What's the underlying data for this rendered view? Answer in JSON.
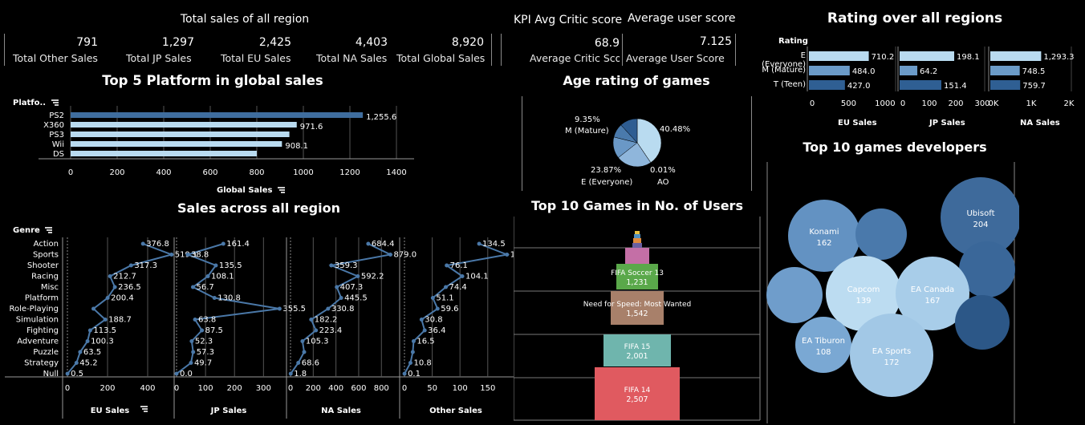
{
  "kpi_sales": {
    "title": "Total sales of all region",
    "items": [
      {
        "value": "791",
        "label": "Total Other Sales"
      },
      {
        "value": "1,297",
        "label": "Total JP Sales"
      },
      {
        "value": "2,425",
        "label": "Total EU Sales"
      },
      {
        "value": "4,403",
        "label": "Total NA Sales"
      },
      {
        "value": "8,920",
        "label": "Total Global Sales"
      }
    ]
  },
  "kpi_scores": {
    "critic_title": "KPI Avg Critic score",
    "critic_value": "68.9",
    "critic_label": "Average Critic Sco",
    "user_title": "Average user score",
    "user_value": "7.125",
    "user_label": "Average User Score"
  },
  "rating_panel": {
    "title": "Rating over all regions",
    "header": "Rating",
    "categories": [
      "E (Everyone)",
      "M (Mature)",
      "T (Teen)"
    ],
    "axis_titles": [
      "EU Sales",
      "JP Sales",
      "NA Sales"
    ],
    "axis_ticks": [
      [
        "0",
        "500",
        "1000"
      ],
      [
        "0",
        "100",
        "200",
        "300"
      ],
      [
        "0K",
        "1K",
        "2K"
      ]
    ],
    "colors": [
      "#b9dbf0",
      "#6b9bc8",
      "#2f5f93"
    ]
  },
  "platform_panel": {
    "title": "Top 5 Platform in global sales",
    "header": "Platfo..",
    "axis_title": "Global Sales",
    "color": "#b9dbf0",
    "top_color": "#3f6d9e"
  },
  "age_panel": {
    "title": "Age rating of games",
    "labels": [
      {
        "pct": "9.35%",
        "name": "M (Mature)"
      },
      {
        "pct": "40.48%",
        "name": ""
      },
      {
        "pct": "23.87%",
        "name": "E (Everyone)"
      },
      {
        "pct": "0.01%",
        "name": "AO"
      }
    ]
  },
  "genre_panel": {
    "title": "Sales across all region",
    "header": "Genre",
    "axis_titles": [
      "EU Sales",
      "JP Sales",
      "NA Sales",
      "Other Sales"
    ],
    "line_color": "#4a78a8"
  },
  "funnel_panel": {
    "title": "Top 10 Games in No. of Users",
    "items": [
      {
        "name": "FIFA 14",
        "value": "2,507",
        "color": "#e05a60"
      },
      {
        "name": "FIFA 15",
        "value": "2,001",
        "color": "#6fb5ad"
      },
      {
        "name": "Need for Speed: Most Wanted",
        "value": "1,542",
        "color": "#a8806a"
      },
      {
        "name": "FIFA Soccer 13",
        "value": "1,231",
        "color": "#5aa84a"
      }
    ],
    "small_colors": [
      "#c46fa6",
      "#6a5fa0",
      "#e08a3c",
      "#4f8fc0",
      "#e8c040"
    ]
  },
  "bubble_panel": {
    "title": "Top 10 games developers",
    "bubbles": [
      {
        "name": "Ubisoft",
        "value": "204",
        "color": "#3e6a9b"
      },
      {
        "name": "Konami",
        "value": "162",
        "color": "#6392c2"
      },
      {
        "name": "",
        "value": "",
        "color": "#4a79ab"
      },
      {
        "name": "",
        "value": "",
        "color": "#3a6799"
      },
      {
        "name": "",
        "value": "",
        "color": "#6f9dcb"
      },
      {
        "name": "Capcom",
        "value": "139",
        "color": "#bcdcf1"
      },
      {
        "name": "EA Canada",
        "value": "167",
        "color": "#a8cde9"
      },
      {
        "name": "",
        "value": "",
        "color": "#2c5787"
      },
      {
        "name": "EA Tiburon",
        "value": "108",
        "color": "#7aa8d3"
      },
      {
        "name": "EA Sports",
        "value": "172",
        "color": "#a2c8e6"
      }
    ]
  },
  "chart_data": [
    {
      "type": "bar",
      "title": "Top 5 Platform in global sales",
      "xlabel": "Global Sales",
      "ylabel": "Platfo..",
      "categories": [
        "PS2",
        "X360",
        "PS3",
        "Wii",
        "DS"
      ],
      "values": [
        1255.6,
        971.6,
        940,
        908.1,
        800
      ],
      "labels": [
        "1,255.6",
        "971.6",
        "",
        "908.1",
        ""
      ],
      "xlim": [
        0,
        1400
      ],
      "ticks": [
        0,
        200,
        400,
        600,
        800,
        1000,
        1200,
        1400
      ]
    },
    {
      "type": "bar",
      "title": "Rating over all regions",
      "categories": [
        "E (Everyone)",
        "M (Mature)",
        "T (Teen)"
      ],
      "series": [
        {
          "name": "EU Sales",
          "values": [
            710.2,
            484.0,
            427.0
          ],
          "labels": [
            "710.2",
            "484.0",
            "427.0"
          ],
          "max": 1000
        },
        {
          "name": "JP Sales",
          "values": [
            198.1,
            64.2,
            151.4
          ],
          "labels": [
            "198.1",
            "64.2",
            "151.4"
          ],
          "max": 300
        },
        {
          "name": "NA Sales",
          "values": [
            1293.3,
            748.5,
            759.7
          ],
          "labels": [
            "1,293.3",
            "748.5",
            "759.7"
          ],
          "max": 2000
        }
      ]
    },
    {
      "type": "pie",
      "title": "Age rating of games",
      "slices": [
        {
          "label": "40.48%",
          "value": 40.48,
          "color": "#b9dbf0"
        },
        {
          "label": "0.01%",
          "value": 0.01,
          "color": "#9cc4e4"
        },
        {
          "label": "23.87%",
          "value": 23.87,
          "color": "#8fb6db"
        },
        {
          "label": "",
          "value": 14.5,
          "color": "#6a98c6"
        },
        {
          "label": "9.35%",
          "value": 9.35,
          "color": "#4a7aac"
        },
        {
          "label": "",
          "value": 11.79,
          "color": "#2e5d92"
        }
      ]
    },
    {
      "type": "line",
      "title": "Sales across all region",
      "categories": [
        "Action",
        "Sports",
        "Shooter",
        "Racing",
        "Misc",
        "Platform",
        "Role-Playing",
        "Simulation",
        "Fighting",
        "Adventure",
        "Puzzle",
        "Strategy",
        "Null"
      ],
      "series": [
        {
          "name": "EU Sales",
          "values": [
            376.8,
            519.1,
            317.3,
            212.7,
            236.5,
            200.4,
            130,
            188.7,
            113.5,
            100.3,
            63.5,
            45.2,
            0.5
          ],
          "labels": [
            "376.8",
            "519.1",
            "317.3",
            "212.7",
            "236.5",
            "200.4",
            "",
            "188.7",
            "113.5",
            "100.3",
            "63.5",
            "45.2",
            "0.5"
          ],
          "xlim": [
            0,
            520
          ],
          "ticks": [
            0,
            200,
            400
          ]
        },
        {
          "name": "JP Sales",
          "values": [
            161.4,
            38.8,
            135.5,
            108.1,
            56.7,
            130.8,
            355.5,
            63.8,
            87.5,
            52.3,
            57.3,
            49.7,
            0.0
          ],
          "labels": [
            "161.4",
            "38.8",
            "135.5",
            "108.1",
            "56.7",
            "130.8",
            "355.5",
            "63.8",
            "87.5",
            "52.3",
            "57.3",
            "49.7",
            "0.0"
          ],
          "xlim": [
            0,
            360
          ],
          "ticks": [
            0,
            100,
            200,
            300
          ]
        },
        {
          "name": "NA Sales",
          "values": [
            684.4,
            879.0,
            359.3,
            592.2,
            407.3,
            445.5,
            330.8,
            182.2,
            223.4,
            105.3,
            120,
            68.6,
            1.8
          ],
          "labels": [
            "684.4",
            "879.0",
            "359.3",
            "592.2",
            "407.3",
            "445.5",
            "330.8",
            "182.2",
            "223.4",
            "105.3",
            "",
            "68.6",
            "1.8"
          ],
          "xlim": [
            0,
            890
          ],
          "ticks": [
            0,
            200,
            400,
            600,
            800
          ]
        },
        {
          "name": "Other Sales",
          "values": [
            134.5,
            184.6,
            76.1,
            104.1,
            74.4,
            51.1,
            59.6,
            30.8,
            36.4,
            16.5,
            15,
            10.8,
            0.1
          ],
          "labels": [
            "134.5",
            "184.6",
            "76.1",
            "104.1",
            "74.4",
            "51.1",
            "59.6",
            "30.8",
            "36.4",
            "16.5",
            "",
            "10.8",
            "0.1"
          ],
          "xlim": [
            0,
            185
          ],
          "ticks": [
            0,
            50,
            100,
            150
          ]
        }
      ]
    },
    {
      "type": "bar",
      "title": "Top 10 Games in No. of Users",
      "categories": [
        "FIFA 14",
        "FIFA 15",
        "Need for Speed: Most Wanted",
        "FIFA Soccer 13"
      ],
      "values": [
        2507,
        2001,
        1542,
        1231
      ]
    },
    {
      "type": "scatter",
      "title": "Top 10 games developers",
      "categories": [
        "Ubisoft",
        "EA Sports",
        "EA Canada",
        "Konami",
        "Capcom",
        "EA Tiburon"
      ],
      "values": [
        204,
        172,
        167,
        162,
        139,
        108
      ]
    }
  ]
}
